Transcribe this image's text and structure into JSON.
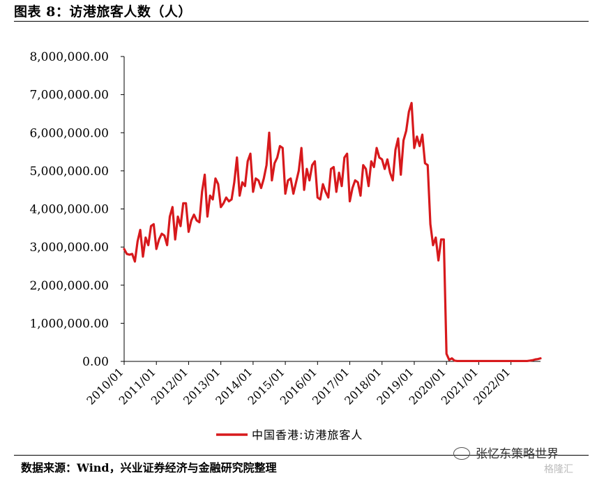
{
  "title": "图表 8：访港旅客人数（人）",
  "source": "数据来源：Wind，兴业证券经济与金融研究院整理",
  "watermark": "张忆东策略世界",
  "watermark2": "格隆汇",
  "chart_data": {
    "type": "line",
    "title": "",
    "xlabel": "",
    "ylabel": "",
    "ylim": [
      0,
      8000000
    ],
    "yticks": [
      "0.00",
      "1,000,000.00",
      "2,000,000.00",
      "3,000,000.00",
      "4,000,000.00",
      "5,000,000.00",
      "6,000,000.00",
      "7,000,000.00",
      "8,000,000.00"
    ],
    "xticks": [
      "2010/01",
      "2011/01",
      "2012/01",
      "2013/01",
      "2014/01",
      "2015/01",
      "2016/01",
      "2017/01",
      "2018/01",
      "2019/01",
      "2020/01",
      "2021/01",
      "2022/01"
    ],
    "legend_position": "bottom",
    "color": "#d7191c",
    "series": [
      {
        "name": "中国香港:访港旅客人",
        "start": "2010/01",
        "frequency": "monthly",
        "values": [
          2950000,
          2820000,
          2800000,
          2820000,
          2620000,
          3150000,
          3450000,
          2750000,
          3250000,
          3050000,
          3550000,
          3600000,
          2950000,
          3200000,
          3350000,
          3300000,
          3050000,
          3800000,
          4050000,
          3200000,
          3800000,
          3550000,
          4150000,
          4150000,
          3400000,
          3700000,
          3850000,
          3700000,
          3650000,
          4450000,
          4900000,
          3800000,
          4350000,
          4250000,
          4800000,
          4650000,
          4050000,
          4150000,
          4300000,
          4200000,
          4250000,
          4700000,
          5350000,
          4350000,
          4700000,
          4600000,
          5250000,
          5450000,
          4450000,
          4800000,
          4750000,
          4550000,
          4800000,
          5150000,
          6000000,
          4750000,
          5200000,
          5350000,
          5650000,
          5600000,
          4400000,
          4750000,
          4800000,
          4400000,
          4700000,
          5000000,
          5600000,
          4500000,
          5050000,
          4750000,
          5150000,
          5250000,
          4300000,
          4250000,
          4650000,
          4450000,
          4300000,
          5050000,
          5100000,
          4450000,
          4950000,
          4600000,
          5350000,
          5450000,
          4200000,
          4550000,
          4750000,
          4700000,
          4350000,
          5150000,
          5050000,
          4600000,
          5250000,
          5100000,
          5600000,
          5350000,
          5300000,
          5050000,
          5300000,
          4950000,
          4750000,
          5550000,
          5850000,
          4900000,
          5800000,
          6050000,
          6550000,
          6780000,
          5600000,
          5900000,
          5650000,
          5950000,
          5200000,
          5150000,
          3600000,
          3050000,
          3250000,
          2650000,
          3200000,
          3200000,
          200000,
          40000,
          80000,
          20000,
          10000,
          10000,
          10000,
          10000,
          10000,
          10000,
          10000,
          10000,
          10000,
          10000,
          10000,
          10000,
          10000,
          10000,
          10000,
          10000,
          10000,
          10000,
          10000,
          10000,
          10000,
          10000,
          10000,
          10000,
          10000,
          10000,
          10000,
          20000,
          30000,
          50000,
          60000,
          80000
        ]
      }
    ]
  }
}
